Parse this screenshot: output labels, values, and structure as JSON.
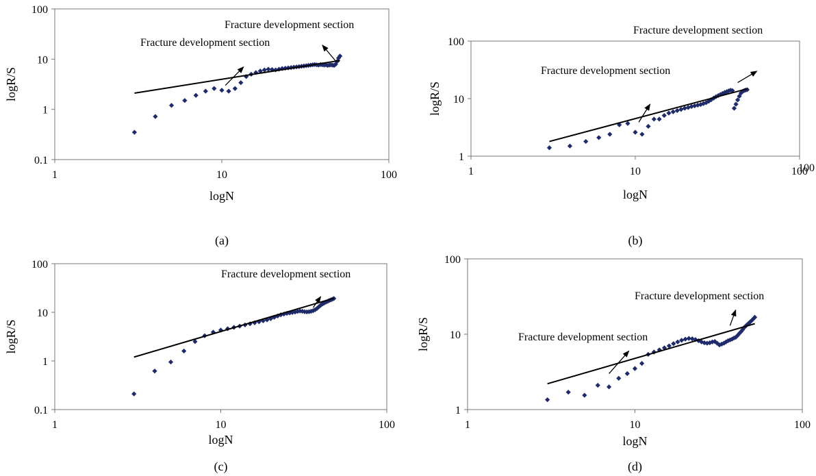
{
  "chart_data": [
    {
      "type": "scatter",
      "caption": "(a)",
      "xlabel": "logN",
      "ylabel": "logR/S",
      "xscale": "log",
      "yscale": "log",
      "xlim": [
        1,
        100
      ],
      "ylim": [
        0.1,
        100
      ],
      "xticks": [
        "1",
        "10",
        "100"
      ],
      "yticks": [
        "0.1",
        "1",
        "10",
        "100"
      ],
      "grid": false,
      "series": [
        {
          "kind": "points",
          "x": [
            3,
            4,
            5,
            6,
            7,
            8,
            9,
            10,
            11,
            12,
            13,
            14,
            15,
            16,
            17,
            18,
            19,
            20,
            21,
            22,
            23,
            24,
            25,
            26,
            27,
            28,
            29,
            30,
            31,
            32,
            33,
            34,
            35,
            36,
            37,
            38,
            39,
            40,
            41,
            42,
            43,
            44,
            45,
            46,
            47,
            48,
            49,
            50,
            51
          ],
          "y": [
            0.35,
            0.72,
            1.2,
            1.5,
            1.9,
            2.3,
            2.6,
            2.4,
            2.3,
            2.6,
            3.4,
            4.5,
            5.0,
            5.4,
            5.8,
            6.1,
            6.3,
            6.2,
            6.1,
            6.3,
            6.5,
            6.6,
            6.7,
            6.8,
            6.9,
            7.0,
            7.1,
            7.2,
            7.3,
            7.4,
            7.5,
            7.6,
            7.7,
            7.8,
            7.7,
            7.6,
            7.8,
            7.7,
            7.6,
            7.7,
            7.5,
            7.6,
            7.7,
            7.6,
            7.5,
            7.9,
            9.0,
            10.5,
            11.5
          ]
        },
        {
          "kind": "fit",
          "x": [
            3,
            51
          ],
          "y": [
            2.1,
            9.4
          ]
        }
      ],
      "annotations": [
        {
          "text": "Fracture development section",
          "arrow_from": [
            10.5,
            3.0
          ],
          "arrow_to": [
            13.5,
            7.0
          ]
        },
        {
          "text": "Fracture development section",
          "arrow_from": [
            48,
            9.2
          ],
          "arrow_to": [
            40,
            19
          ]
        }
      ]
    },
    {
      "type": "scatter",
      "caption": "(b)",
      "xlabel": "logN",
      "ylabel": "logR/S",
      "xscale": "log",
      "yscale": "log",
      "xlim": [
        1,
        100
      ],
      "ylim": [
        1,
        100
      ],
      "xticks": [
        "1",
        "10",
        "100"
      ],
      "yticks": [
        "1",
        "10",
        "100"
      ],
      "extra_tick_label": "100",
      "grid": false,
      "series": [
        {
          "kind": "points",
          "x": [
            3,
            4,
            5,
            6,
            7,
            8,
            9,
            10,
            11,
            12,
            13,
            14,
            15,
            16,
            17,
            18,
            19,
            20,
            21,
            22,
            23,
            24,
            25,
            26,
            27,
            28,
            29,
            30,
            31,
            32,
            33,
            34,
            35,
            36,
            37,
            38,
            39,
            40,
            41,
            42,
            43,
            44,
            45,
            46,
            47,
            48
          ],
          "y": [
            1.4,
            1.5,
            1.8,
            2.1,
            2.4,
            3.5,
            3.7,
            2.6,
            2.4,
            3.3,
            4.4,
            4.4,
            5.1,
            5.6,
            5.9,
            6.2,
            6.5,
            6.8,
            7.0,
            7.3,
            7.5,
            7.7,
            7.9,
            8.2,
            8.5,
            9.0,
            9.6,
            10.2,
            10.8,
            11.3,
            11.8,
            12.3,
            12.8,
            13.2,
            13.6,
            14.0,
            13.8,
            6.8,
            8.0,
            9.5,
            11.0,
            12.5,
            13.3,
            13.8,
            14.1,
            14.3
          ]
        },
        {
          "kind": "fit",
          "x": [
            3,
            48
          ],
          "y": [
            1.8,
            14.8
          ]
        }
      ],
      "annotations": [
        {
          "text": "Fracture development section",
          "arrow_from": [
            10.5,
            3.9
          ],
          "arrow_to": [
            12.3,
            8.0
          ]
        },
        {
          "text": "Fracture development section",
          "arrow_from": [
            42,
            19
          ],
          "arrow_to": [
            55,
            30
          ]
        }
      ]
    },
    {
      "type": "scatter",
      "caption": "(c)",
      "xlabel": "logN",
      "ylabel": "logR/S",
      "xscale": "log",
      "yscale": "log",
      "xlim": [
        1,
        100
      ],
      "ylim": [
        0.1,
        100
      ],
      "xticks": [
        "1",
        "10",
        "100"
      ],
      "yticks": [
        "0.1",
        "1",
        "10",
        "100"
      ],
      "grid": false,
      "series": [
        {
          "kind": "points",
          "x": [
            3,
            4,
            5,
            6,
            7,
            8,
            9,
            10,
            11,
            12,
            13,
            14,
            15,
            16,
            17,
            18,
            19,
            20,
            21,
            22,
            23,
            24,
            25,
            26,
            27,
            28,
            29,
            30,
            31,
            32,
            33,
            34,
            35,
            36,
            37,
            38,
            39,
            40,
            41,
            42,
            43,
            44,
            45,
            46,
            47,
            48
          ],
          "y": [
            0.21,
            0.62,
            0.95,
            1.6,
            2.5,
            3.3,
            3.9,
            4.3,
            4.6,
            4.9,
            5.2,
            5.5,
            5.8,
            6.1,
            6.4,
            6.7,
            7.0,
            7.4,
            7.9,
            8.4,
            8.9,
            9.2,
            9.5,
            9.7,
            9.9,
            10.1,
            10.4,
            10.6,
            10.5,
            10.3,
            10.2,
            10.3,
            10.5,
            10.8,
            11.3,
            12.0,
            13.0,
            14.0,
            14.8,
            15.5,
            16.2,
            16.8,
            17.5,
            18.0,
            18.6,
            19.2
          ]
        },
        {
          "kind": "fit",
          "x": [
            3,
            48
          ],
          "y": [
            1.2,
            19.5
          ]
        }
      ],
      "annotations": [
        {
          "text": "Fracture development section",
          "arrow_from": [
            36,
            12.5
          ],
          "arrow_to": [
            40,
            21
          ]
        }
      ]
    },
    {
      "type": "scatter",
      "caption": "(d)",
      "xlabel": "logN",
      "ylabel": "logR/S",
      "xscale": "log",
      "yscale": "log",
      "xlim": [
        1,
        100
      ],
      "ylim": [
        1,
        100
      ],
      "xticks": [
        "1",
        "10",
        "100"
      ],
      "yticks": [
        "1",
        "10",
        "100"
      ],
      "grid": false,
      "series": [
        {
          "kind": "points",
          "x": [
            3,
            4,
            5,
            6,
            7,
            8,
            9,
            10,
            11,
            12,
            13,
            14,
            15,
            16,
            17,
            18,
            19,
            20,
            21,
            22,
            23,
            24,
            25,
            26,
            27,
            28,
            29,
            30,
            31,
            32,
            33,
            34,
            35,
            36,
            37,
            38,
            39,
            40,
            41,
            42,
            43,
            44,
            45,
            46,
            47,
            48,
            49,
            50,
            51,
            52
          ],
          "y": [
            1.35,
            1.7,
            1.55,
            2.1,
            2.0,
            2.6,
            3.0,
            3.5,
            4.1,
            5.4,
            5.8,
            6.2,
            6.6,
            7.0,
            7.5,
            7.9,
            8.3,
            8.6,
            8.8,
            8.7,
            8.5,
            8.2,
            7.9,
            7.7,
            7.6,
            7.7,
            7.9,
            8.0,
            7.6,
            7.2,
            7.4,
            7.6,
            7.9,
            8.2,
            8.4,
            8.6,
            8.9,
            9.1,
            9.6,
            10.2,
            10.8,
            11.5,
            12.3,
            12.9,
            13.5,
            14.1,
            14.7,
            15.3,
            16.0,
            16.8
          ]
        },
        {
          "kind": "fit",
          "x": [
            3,
            52
          ],
          "y": [
            2.2,
            13.8
          ]
        }
      ],
      "annotations": [
        {
          "text": "Fracture development section",
          "arrow_from": [
            7,
            3.0
          ],
          "arrow_to": [
            9.2,
            6.0
          ]
        },
        {
          "text": "Fracture development section",
          "arrow_from": [
            37,
            13
          ],
          "arrow_to": [
            40,
            21
          ]
        }
      ]
    }
  ]
}
